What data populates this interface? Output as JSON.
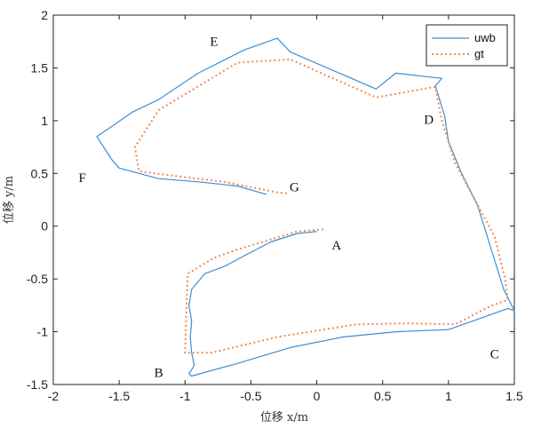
{
  "chart_data": {
    "type": "line",
    "xlabel": "位移 x/m",
    "ylabel": "位移 y/m",
    "xlim": [
      -2,
      1.5
    ],
    "ylim": [
      -1.5,
      2
    ],
    "xticks": [
      -2,
      -1.5,
      -1,
      -0.5,
      0,
      0.5,
      1,
      1.5
    ],
    "yticks": [
      -1.5,
      -1,
      -0.5,
      0,
      0.5,
      1,
      1.5,
      2
    ],
    "xtick_labels": [
      "-2",
      "-1.5",
      "-1",
      "-0.5",
      "0",
      "0.5",
      "1",
      "1.5"
    ],
    "ytick_labels": [
      "-1.5",
      "-1",
      "-0.5",
      "0",
      "0.5",
      "1",
      "1.5",
      "2"
    ],
    "grid": false,
    "legend_position": "top-right",
    "series": [
      {
        "name": "uwb",
        "style": "solid",
        "color": "#3b8fd4",
        "x": [
          0.0,
          -0.15,
          -0.35,
          -0.55,
          -0.7,
          -0.85,
          -0.95,
          -0.97,
          -0.95,
          -0.96,
          -0.95,
          -0.93,
          -0.97,
          -0.95,
          -0.6,
          -0.2,
          0.2,
          0.6,
          1.0,
          1.45,
          1.5,
          1.42,
          1.32,
          1.22,
          1.1,
          1.0,
          0.97,
          0.9,
          0.95,
          0.6,
          0.45,
          -0.2,
          -0.3,
          -0.55,
          -0.9,
          -1.2,
          -1.4,
          -1.55,
          -1.67,
          -1.55,
          -1.5,
          -1.2,
          -0.9,
          -0.6,
          -0.38
        ],
        "y": [
          -0.05,
          -0.07,
          -0.15,
          -0.28,
          -0.38,
          -0.45,
          -0.6,
          -0.75,
          -0.9,
          -1.05,
          -1.2,
          -1.32,
          -1.4,
          -1.42,
          -1.3,
          -1.15,
          -1.05,
          -1.0,
          -0.98,
          -0.78,
          -0.8,
          -0.6,
          -0.2,
          0.2,
          0.5,
          0.8,
          1.05,
          1.33,
          1.4,
          1.45,
          1.3,
          1.65,
          1.78,
          1.67,
          1.45,
          1.2,
          1.08,
          0.95,
          0.85,
          0.62,
          0.55,
          0.45,
          0.42,
          0.38,
          0.3
        ]
      },
      {
        "name": "gt",
        "style": "dotted",
        "color": "#f08a55",
        "x": [
          0.05,
          -0.15,
          -0.6,
          -0.78,
          -0.98,
          -1.0,
          -0.8,
          -0.3,
          0.3,
          0.7,
          1.05,
          1.33,
          1.45,
          1.43,
          1.35,
          1.05,
          0.95,
          0.9,
          0.45,
          -0.2,
          -0.6,
          -1.2,
          -1.38,
          -1.35,
          -1.1,
          -0.7,
          -0.3,
          -0.22
        ],
        "y": [
          -0.03,
          -0.05,
          -0.22,
          -0.3,
          -0.45,
          -1.2,
          -1.2,
          -1.05,
          -0.93,
          -0.92,
          -0.93,
          -0.75,
          -0.7,
          -0.5,
          -0.1,
          0.6,
          1.0,
          1.32,
          1.22,
          1.58,
          1.55,
          1.1,
          0.75,
          0.52,
          0.48,
          0.42,
          0.32,
          0.31
        ]
      }
    ],
    "annotations": [
      {
        "text": "A",
        "x": 0.15,
        "y": -0.22
      },
      {
        "text": "B",
        "x": -1.2,
        "y": -1.43
      },
      {
        "text": "C",
        "x": 1.35,
        "y": -1.25
      },
      {
        "text": "D",
        "x": 0.85,
        "y": 0.97
      },
      {
        "text": "E",
        "x": -0.78,
        "y": 1.71
      },
      {
        "text": "F",
        "x": -1.78,
        "y": 0.42
      },
      {
        "text": "G",
        "x": -0.17,
        "y": 0.33
      }
    ]
  }
}
